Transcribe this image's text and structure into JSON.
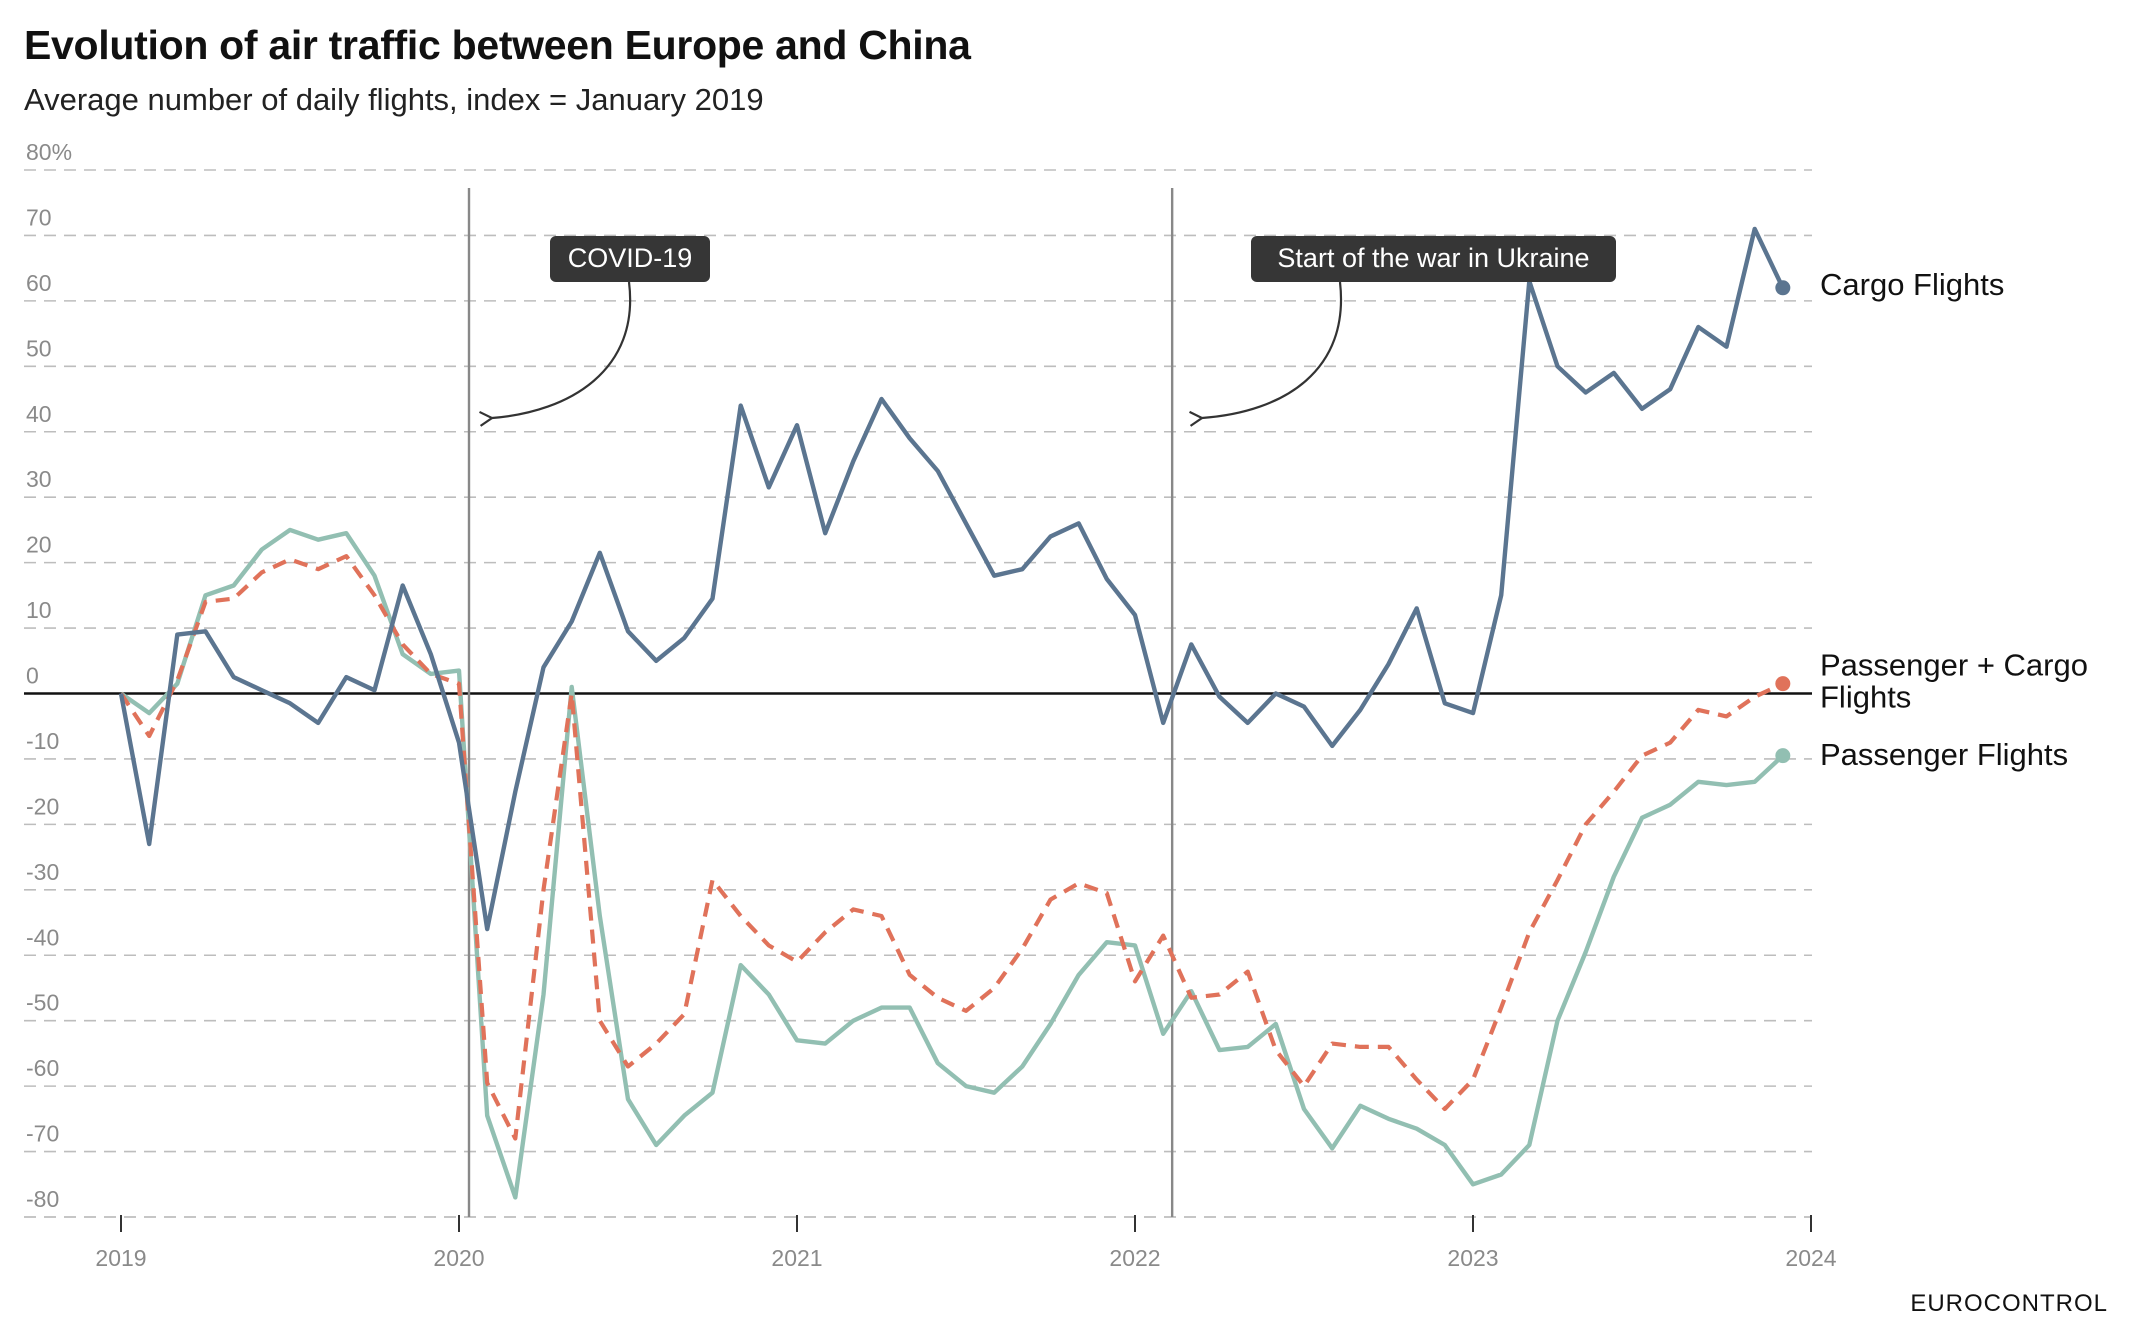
{
  "title": "Evolution of air traffic between Europe and China",
  "subtitle": "Average number of daily flights, index = January 2019",
  "source": "EUROCONTROL",
  "colors": {
    "cargo": "#5b7590",
    "combined": "#e0725a",
    "passenger": "#92bfb2",
    "annotation_bg": "#363636",
    "grid": "#bdbdbd",
    "zero_line": "#111111",
    "event_line": "#888888"
  },
  "chart_data": {
    "type": "line",
    "title": "Evolution of air traffic between Europe and China",
    "subtitle": "Average number of daily flights, index = January 2019",
    "xlabel": "",
    "ylabel": "",
    "x_start": "2019-01",
    "x_end": "2023-12",
    "xlim": [
      "2019-01",
      "2024-01"
    ],
    "ylim": [
      -80,
      80
    ],
    "x_ticks": [
      "2019",
      "2020",
      "2021",
      "2022",
      "2023",
      "2024"
    ],
    "y_ticks": [
      {
        "value": 80,
        "label": "80%"
      },
      {
        "value": 70,
        "label": "70"
      },
      {
        "value": 60,
        "label": "60"
      },
      {
        "value": 50,
        "label": "50"
      },
      {
        "value": 40,
        "label": "40"
      },
      {
        "value": 30,
        "label": "30"
      },
      {
        "value": 20,
        "label": "20"
      },
      {
        "value": 10,
        "label": "10"
      },
      {
        "value": 0,
        "label": "0"
      },
      {
        "value": -10,
        "label": "-10"
      },
      {
        "value": -20,
        "label": "-20"
      },
      {
        "value": -30,
        "label": "-30"
      },
      {
        "value": -40,
        "label": "-40"
      },
      {
        "value": -50,
        "label": "-50"
      },
      {
        "value": -60,
        "label": "-60"
      },
      {
        "value": -70,
        "label": "-70"
      },
      {
        "value": -80,
        "label": "-80"
      }
    ],
    "grid": true,
    "series": [
      {
        "name": "Cargo Flights",
        "color": "#5b7590",
        "dash": "solid",
        "values": [
          0,
          -23,
          9,
          9.5,
          2.5,
          0.5,
          -1.5,
          -4.5,
          2.5,
          0.5,
          16.5,
          6,
          -7.5,
          -36,
          -15,
          4,
          11,
          21.5,
          9.5,
          5,
          8.5,
          14.5,
          44,
          31.5,
          41,
          24.5,
          35.5,
          45,
          39,
          34,
          26,
          18,
          19,
          24,
          26,
          17.5,
          12,
          -4.5,
          7.5,
          -0.5,
          -4.5,
          0,
          -2,
          -8,
          -2.5,
          4.5,
          13,
          -1.5,
          -3,
          15,
          63,
          50,
          46,
          49,
          43.5,
          46.5,
          56,
          53,
          71,
          62
        ]
      },
      {
        "name": "Passenger + Cargo Flights",
        "color": "#e0725a",
        "dash": "dashed",
        "values": [
          0,
          -6.5,
          2,
          14,
          14.5,
          18.5,
          20.5,
          19,
          21,
          15,
          7.5,
          3,
          1.5,
          -59.5,
          -68,
          -30,
          0,
          -50,
          -57,
          -53.5,
          -49,
          -28.5,
          -34,
          -38.5,
          -41,
          -36.5,
          -33,
          -34,
          -43,
          -46.5,
          -48.5,
          -45,
          -39,
          -31.5,
          -29,
          -30.5,
          -44,
          -37,
          -46.5,
          -46,
          -42.5,
          -54.5,
          -60,
          -53.5,
          -54,
          -54,
          -59,
          -63.5,
          -59,
          -48,
          -36.5,
          -28.5,
          -20,
          -15,
          -9.5,
          -7.5,
          -2.5,
          -3.5,
          -0.5,
          1.5
        ]
      },
      {
        "name": "Passenger Flights",
        "color": "#92bfb2",
        "dash": "solid",
        "values": [
          0,
          -3,
          1.5,
          15,
          16.5,
          22,
          25,
          23.5,
          24.5,
          18,
          6,
          3,
          3.5,
          -64.5,
          -77,
          -46,
          1,
          -34,
          -62,
          -69,
          -64.5,
          -61,
          -41.5,
          -46,
          -53,
          -53.5,
          -50,
          -48,
          -48,
          -56.5,
          -60,
          -61,
          -57,
          -50.5,
          -43,
          -38,
          -38.5,
          -52,
          -45.5,
          -54.5,
          -54,
          -50.5,
          -63.5,
          -69.5,
          -63,
          -65,
          -66.5,
          -69,
          -75,
          -73.5,
          -69,
          -50,
          -39.5,
          -28,
          -19,
          -17,
          -13.5,
          -14,
          -13.5,
          -9.5
        ]
      }
    ],
    "annotations": [
      {
        "label": "COVID-19",
        "x": "2020-01"
      },
      {
        "label": "Start of the war in Ukraine",
        "x": "2022-02"
      }
    ],
    "legend": "right-end-labels"
  }
}
